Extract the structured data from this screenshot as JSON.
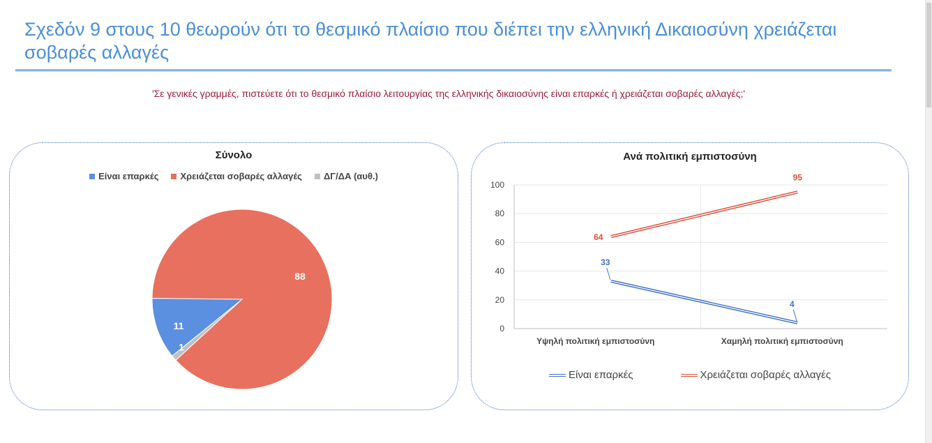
{
  "slide": {
    "title": "Σχεδόν 9 στους 10 θεωρούν ότι το θεσμικό πλαίσιο που διέπει την ελληνική Δικαιοσύνη χρειάζεται σοβαρές αλλαγές",
    "question": "'Σε γενικές γραμμές, πιστεύετε ότι το θεσμικό πλαίσιο λειτουργίας της ελληνικής δικαιοσύνης είναι επαρκές ή χρειάζεται σοβαρές αλλαγές;'"
  },
  "colors": {
    "title": "#4a8fd6",
    "question": "#9b1b3b",
    "sufficient": "#5b8fe0",
    "needs_changes": "#e8705e",
    "dk_na": "#c0c0c0",
    "line_sufficient": "#3f72c4",
    "line_needs_changes": "#d9503a"
  },
  "chart_data": [
    {
      "type": "pie",
      "title": "Σύνολο",
      "legend_position": "top",
      "categories": [
        "Είναι επαρκές",
        "Χρειάζεται σοβαρές αλλαγές",
        "ΔΓ/ΔΑ (αυθ.)"
      ],
      "values": [
        11,
        88,
        1
      ],
      "data_labels": [
        "11",
        "88",
        "1"
      ]
    },
    {
      "type": "line",
      "title": "Ανά πολιτική εμπιστοσύνη",
      "legend_position": "bottom",
      "categories": [
        "Υψηλή πολιτική εμπιστοσύνη",
        "Χαμηλή πολιτική εμπιστοσύνη"
      ],
      "series": [
        {
          "name": "Είναι επαρκές",
          "values": [
            33,
            4
          ]
        },
        {
          "name": "Χρειάζεται σοβαρές αλλαγές",
          "values": [
            64,
            95
          ]
        }
      ],
      "ylim": [
        0,
        100
      ],
      "yticks": [
        "0",
        "20",
        "40",
        "60",
        "80",
        "100"
      ],
      "grid": true
    }
  ]
}
